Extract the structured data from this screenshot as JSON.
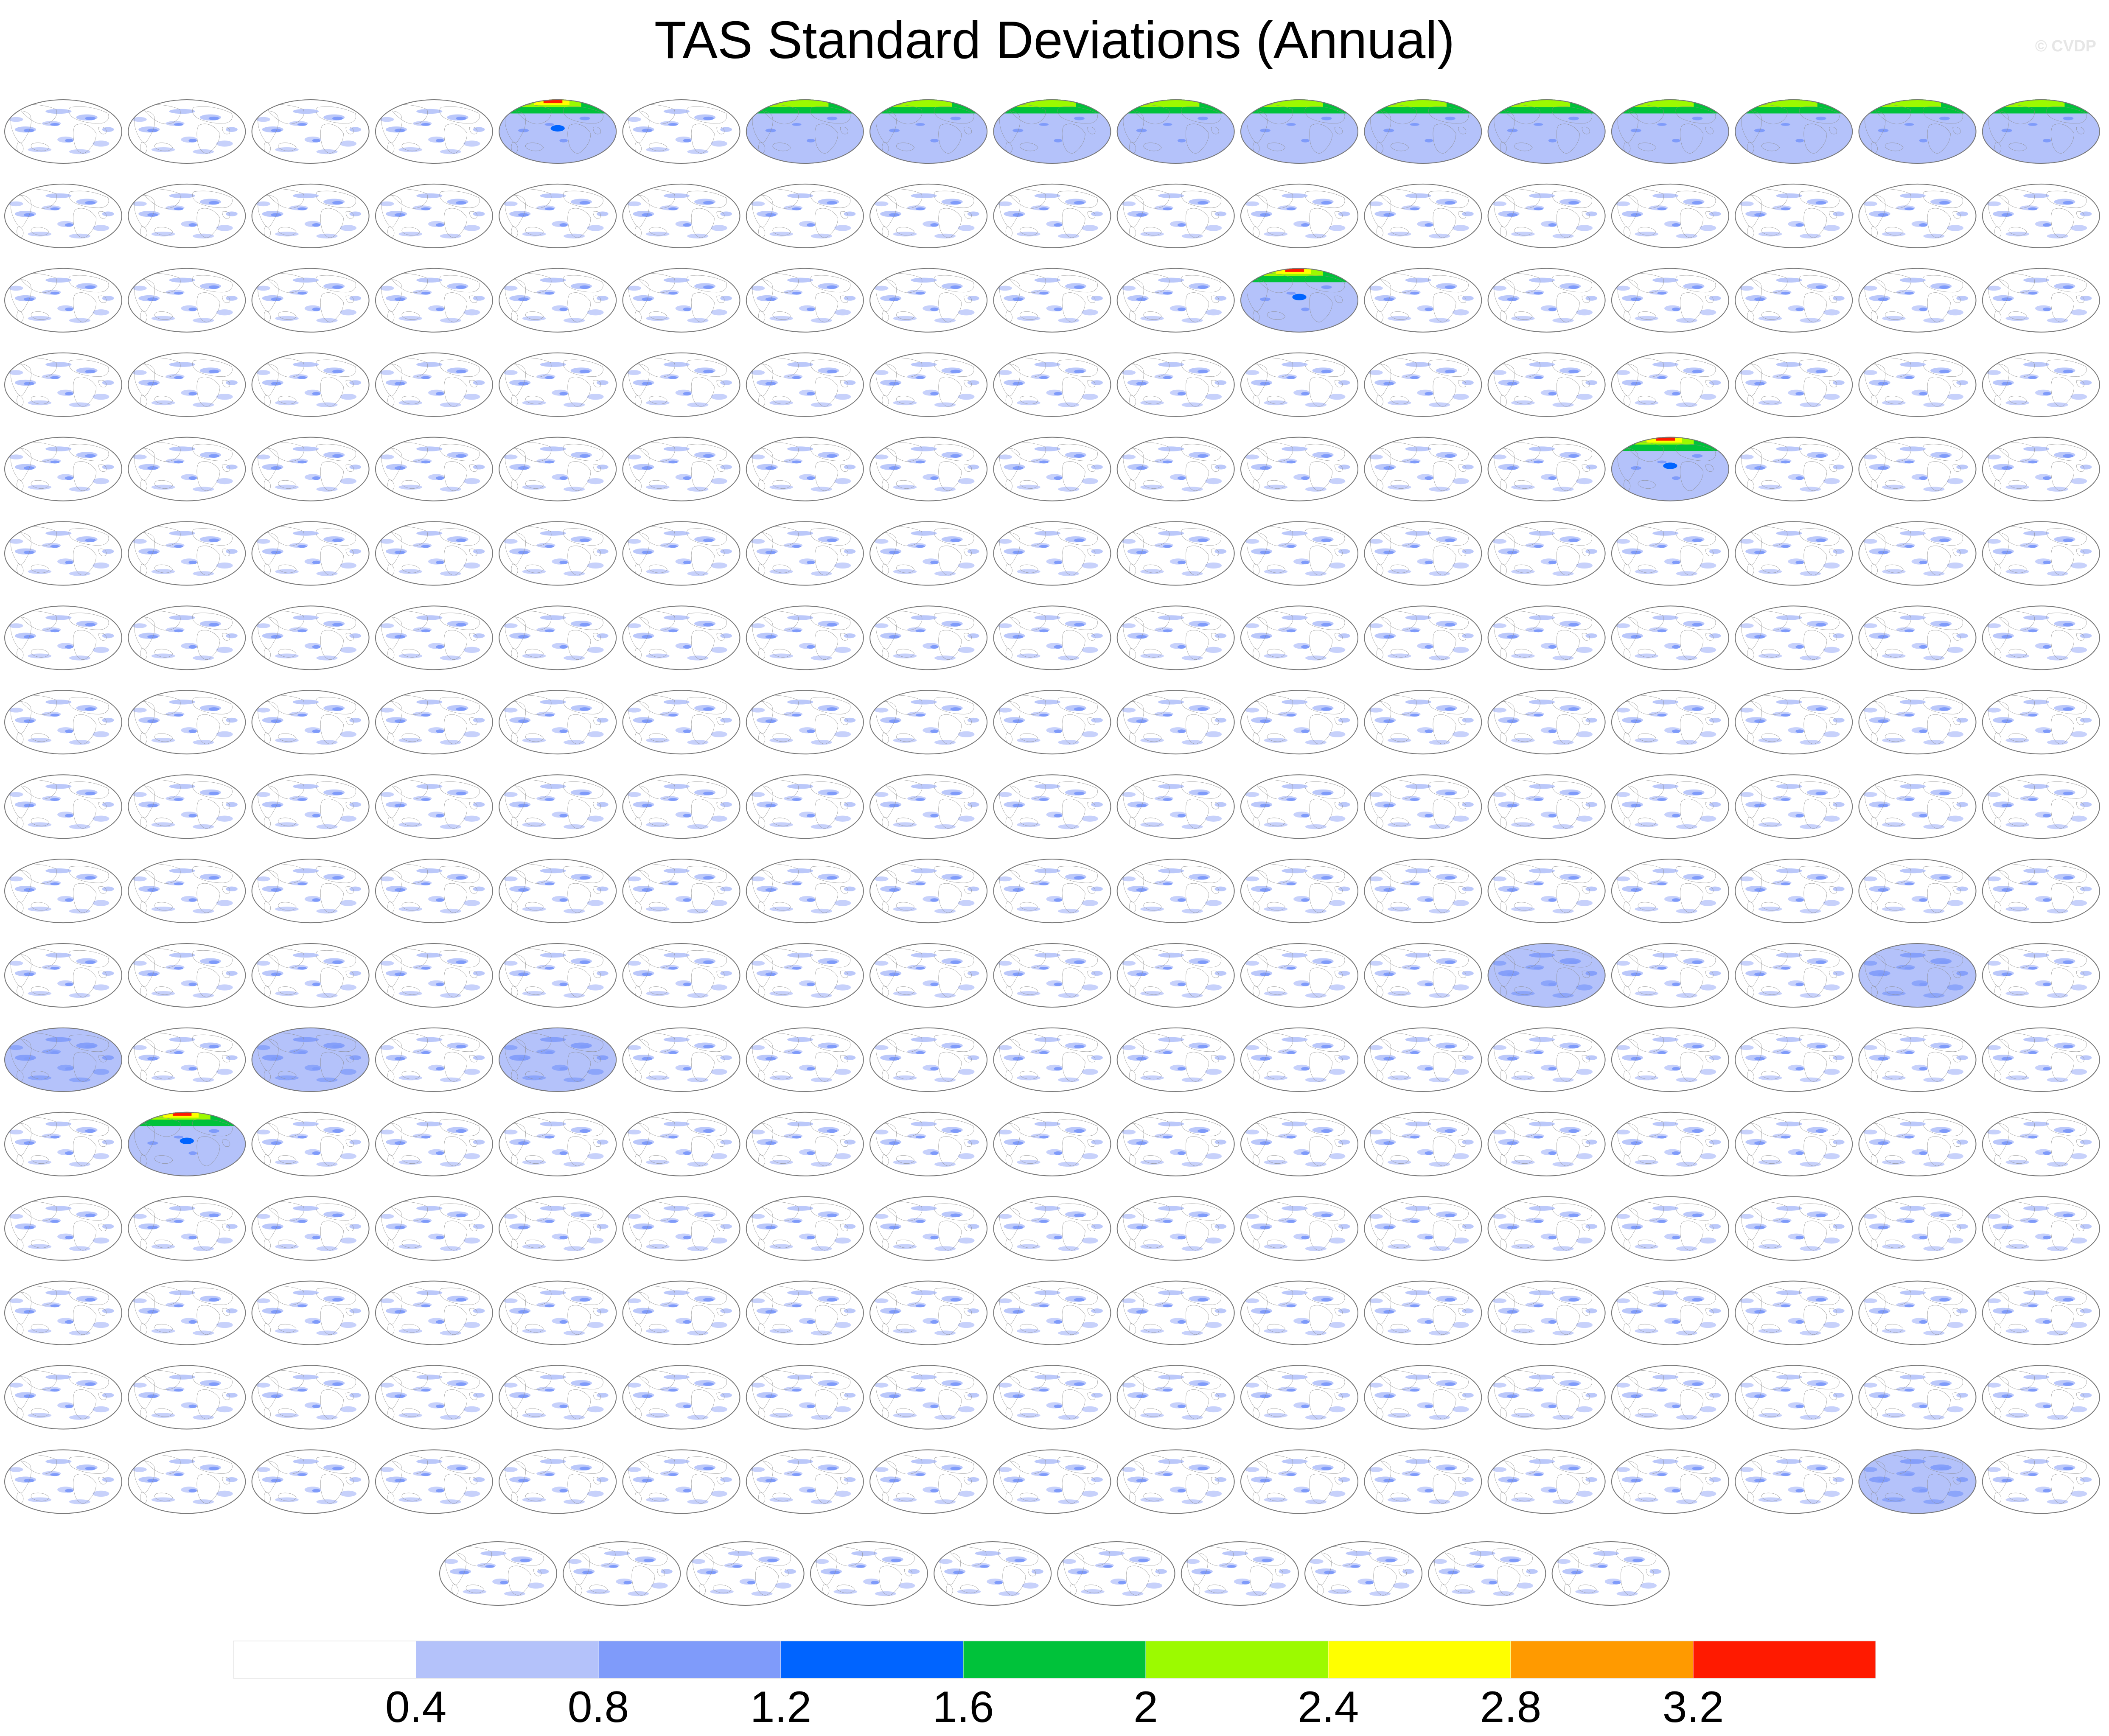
{
  "page": {
    "title": "TAS Standard Deviations (Annual)",
    "watermark": "© CVDP"
  },
  "panels": {
    "grid_columns": 17,
    "grid_rows": 17,
    "bottom_row_count": 10,
    "map_style": {
      "ocean": "#ffffff",
      "land_outline": "#888888",
      "border": "#777777"
    },
    "highlighted_panels": [
      {
        "row": 0,
        "col": 4,
        "style": "vivid"
      },
      {
        "row": 0,
        "col": 6,
        "style": "strong"
      },
      {
        "row": 0,
        "col": 7,
        "style": "strong"
      },
      {
        "row": 0,
        "col": 8,
        "style": "strong"
      },
      {
        "row": 0,
        "col": 9,
        "style": "strong"
      },
      {
        "row": 0,
        "col": 10,
        "style": "strong"
      },
      {
        "row": 0,
        "col": 11,
        "style": "strong"
      },
      {
        "row": 0,
        "col": 12,
        "style": "strong"
      },
      {
        "row": 0,
        "col": 13,
        "style": "strong"
      },
      {
        "row": 0,
        "col": 14,
        "style": "strong"
      },
      {
        "row": 0,
        "col": 15,
        "style": "strong"
      },
      {
        "row": 0,
        "col": 16,
        "style": "strong"
      },
      {
        "row": 2,
        "col": 10,
        "style": "vivid"
      },
      {
        "row": 4,
        "col": 13,
        "style": "vivid"
      },
      {
        "row": 10,
        "col": 12,
        "style": "blue"
      },
      {
        "row": 10,
        "col": 15,
        "style": "blue"
      },
      {
        "row": 11,
        "col": 0,
        "style": "blue"
      },
      {
        "row": 11,
        "col": 2,
        "style": "blue"
      },
      {
        "row": 11,
        "col": 4,
        "style": "blue"
      },
      {
        "row": 12,
        "col": 1,
        "style": "vivid"
      },
      {
        "row": 16,
        "col": 15,
        "style": "blue"
      }
    ]
  },
  "colorbar": {
    "colors": [
      "#ffffff",
      "#b4c2fa",
      "#7f9bfa",
      "#0064ff",
      "#00c23a",
      "#9cfa00",
      "#ffff00",
      "#ff9a00",
      "#ff1a00"
    ],
    "labels": [
      "0.4",
      "0.8",
      "1.2",
      "1.6",
      "2",
      "2.4",
      "2.8",
      "3.2"
    ]
  }
}
